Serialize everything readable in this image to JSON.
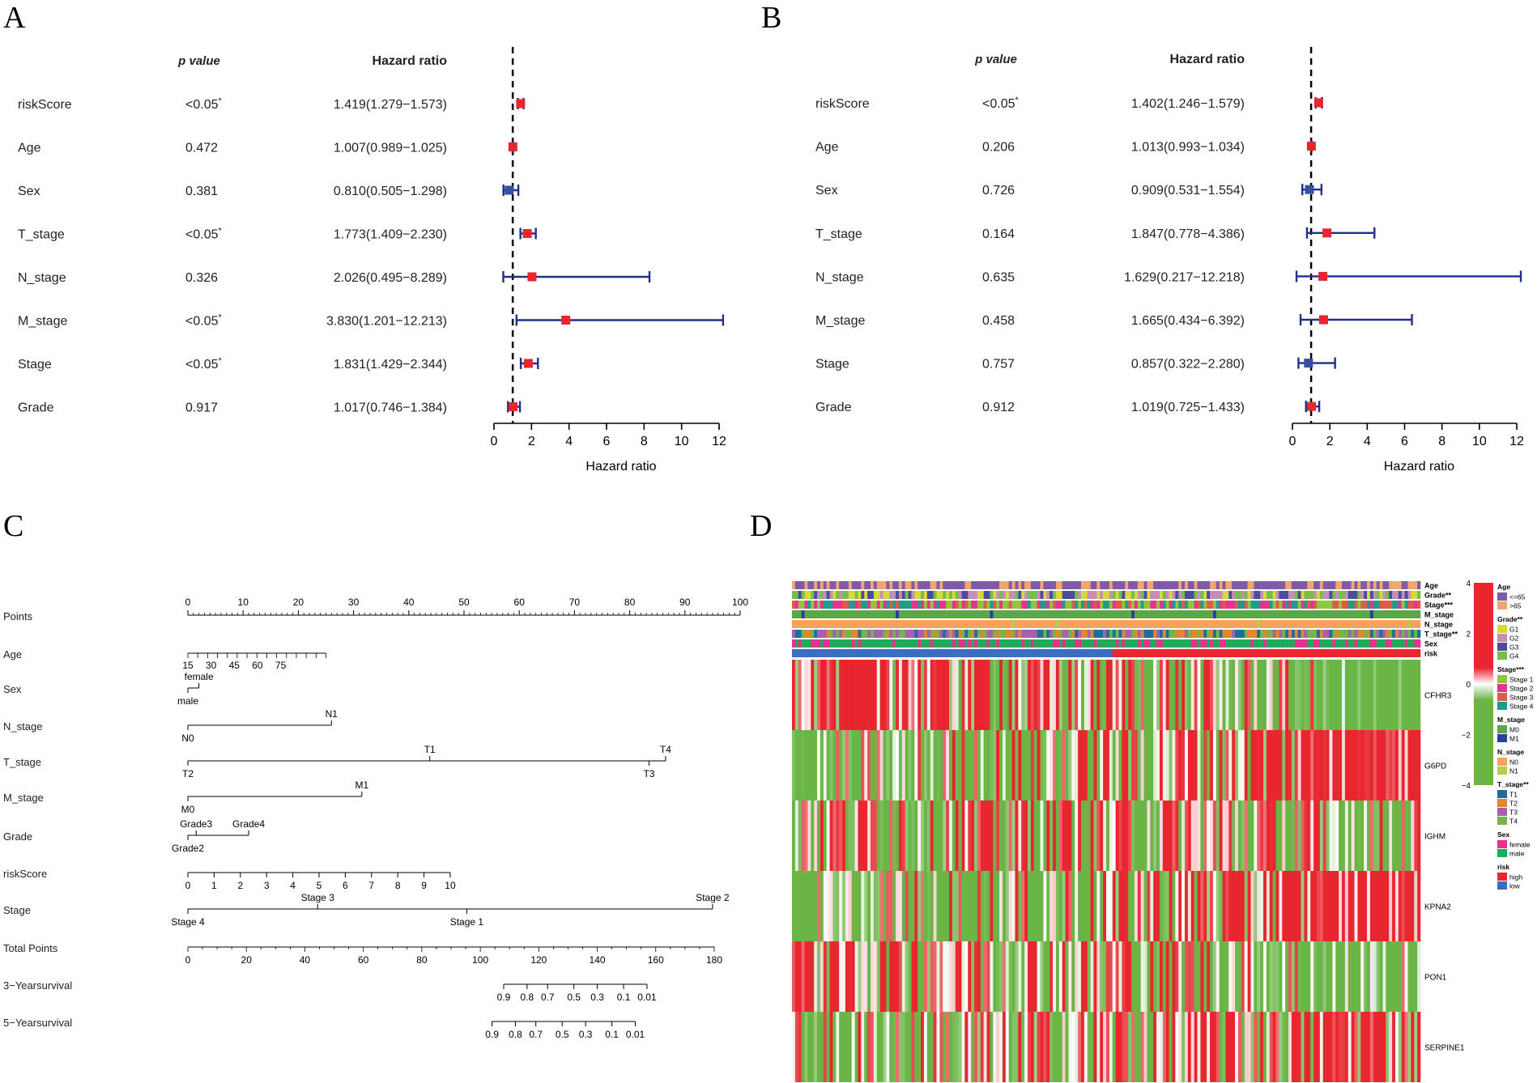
{
  "panels": {
    "A": "A",
    "B": "B",
    "C": "C",
    "D": "D"
  },
  "chart_data": [
    {
      "type": "forest",
      "panel": "A",
      "col_pvalue_header": "p value",
      "col_hr_header": "Hazard ratio",
      "xlabel": "Hazard ratio",
      "xticks": [
        "0",
        "2",
        "4",
        "6",
        "8",
        "10",
        "12"
      ],
      "xlim": [
        0,
        12
      ],
      "ref_line": 1,
      "colors": {
        "risk": "#e8262f",
        "protective": "#3a4ea0",
        "ci": "#1f2f8c"
      },
      "rows": [
        {
          "name": "riskScore",
          "p": "<0.05",
          "star": "*",
          "hr_text": "1.419(1.279−1.573)",
          "hr": 1.419,
          "lo": 1.279,
          "hi": 1.573
        },
        {
          "name": "Age",
          "p": "0.472",
          "star": "",
          "hr_text": "1.007(0.989−1.025)",
          "hr": 1.007,
          "lo": 0.989,
          "hi": 1.025
        },
        {
          "name": "Sex",
          "p": "0.381",
          "star": "",
          "hr_text": "0.810(0.505−1.298)",
          "hr": 0.81,
          "lo": 0.505,
          "hi": 1.298
        },
        {
          "name": "T_stage",
          "p": "<0.05",
          "star": "*",
          "hr_text": "1.773(1.409−2.230)",
          "hr": 1.773,
          "lo": 1.409,
          "hi": 2.23
        },
        {
          "name": "N_stage",
          "p": "0.326",
          "star": "",
          "hr_text": "2.026(0.495−8.289)",
          "hr": 2.026,
          "lo": 0.495,
          "hi": 8.289
        },
        {
          "name": "M_stage",
          "p": "<0.05",
          "star": "*",
          "hr_text": "3.830(1.201−12.213)",
          "hr": 3.83,
          "lo": 1.201,
          "hi": 12.213
        },
        {
          "name": "Stage",
          "p": "<0.05",
          "star": "*",
          "hr_text": "1.831(1.429−2.344)",
          "hr": 1.831,
          "lo": 1.429,
          "hi": 2.344
        },
        {
          "name": "Grade",
          "p": "0.917",
          "star": "",
          "hr_text": "1.017(0.746−1.384)",
          "hr": 1.017,
          "lo": 0.746,
          "hi": 1.384
        }
      ]
    },
    {
      "type": "forest",
      "panel": "B",
      "col_pvalue_header": "p value",
      "col_hr_header": "Hazard ratio",
      "xlabel": "Hazard ratio",
      "xticks": [
        "0",
        "2",
        "4",
        "6",
        "8",
        "10",
        "12"
      ],
      "xlim": [
        0,
        12
      ],
      "ref_line": 1,
      "colors": {
        "risk": "#e8262f",
        "protective": "#3a4ea0",
        "ci": "#1f2f8c"
      },
      "rows": [
        {
          "name": "riskScore",
          "p": "<0.05",
          "star": "*",
          "hr_text": "1.402(1.246−1.579)",
          "hr": 1.402,
          "lo": 1.246,
          "hi": 1.579
        },
        {
          "name": "Age",
          "p": "0.206",
          "star": "",
          "hr_text": "1.013(0.993−1.034)",
          "hr": 1.013,
          "lo": 0.993,
          "hi": 1.034
        },
        {
          "name": "Sex",
          "p": "0.726",
          "star": "",
          "hr_text": "0.909(0.531−1.554)",
          "hr": 0.909,
          "lo": 0.531,
          "hi": 1.554
        },
        {
          "name": "T_stage",
          "p": "0.164",
          "star": "",
          "hr_text": "1.847(0.778−4.386)",
          "hr": 1.847,
          "lo": 0.778,
          "hi": 4.386
        },
        {
          "name": "N_stage",
          "p": "0.635",
          "star": "",
          "hr_text": "1.629(0.217−12.218)",
          "hr": 1.629,
          "lo": 0.217,
          "hi": 12.218
        },
        {
          "name": "M_stage",
          "p": "0.458",
          "star": "",
          "hr_text": "1.665(0.434−6.392)",
          "hr": 1.665,
          "lo": 0.434,
          "hi": 6.392
        },
        {
          "name": "Stage",
          "p": "0.757",
          "star": "",
          "hr_text": "0.857(0.322−2.280)",
          "hr": 0.857,
          "lo": 0.322,
          "hi": 2.28
        },
        {
          "name": "Grade",
          "p": "0.912",
          "star": "",
          "hr_text": "1.019(0.725−1.433)",
          "hr": 1.019,
          "lo": 0.725,
          "hi": 1.433
        }
      ]
    },
    {
      "type": "nomogram",
      "panel": "C",
      "rows": [
        {
          "name": "Points",
          "kind": "points",
          "range": [
            0,
            100
          ],
          "ticks": [
            "0",
            "10",
            "20",
            "30",
            "40",
            "50",
            "60",
            "70",
            "80",
            "90",
            "100"
          ],
          "tick_values": [
            0,
            10,
            20,
            30,
            40,
            50,
            60,
            70,
            80,
            90,
            100
          ]
        },
        {
          "name": "Age",
          "kind": "age",
          "range": [
            0,
            25
          ],
          "labels": [
            "15",
            "30",
            "45",
            "60",
            "75"
          ],
          "label_points": [
            0,
            4.2,
            8.4,
            12.6,
            16.8
          ],
          "minor_count": 14
        },
        {
          "name": "Sex",
          "kind": "cat",
          "range": [
            0,
            2
          ],
          "upper": [
            {
              "text": "female",
              "pt": 2
            }
          ],
          "lower": [
            {
              "text": "male",
              "pt": 0
            }
          ]
        },
        {
          "name": "N_stage",
          "kind": "cat",
          "range": [
            0,
            26
          ],
          "upper": [
            {
              "text": "N1",
              "pt": 26
            }
          ],
          "lower": [
            {
              "text": "N0",
              "pt": 0
            }
          ]
        },
        {
          "name": "T_stage",
          "kind": "cat",
          "range": [
            0,
            86.5
          ],
          "upper": [
            {
              "text": "T1",
              "pt": 43.8
            },
            {
              "text": "T4",
              "pt": 86.5
            }
          ],
          "lower": [
            {
              "text": "T2",
              "pt": 0
            },
            {
              "text": "T3",
              "pt": 83.5
            }
          ]
        },
        {
          "name": "M_stage",
          "kind": "cat",
          "range": [
            0,
            31.5
          ],
          "upper": [
            {
              "text": "M1",
              "pt": 31.5
            }
          ],
          "lower": [
            {
              "text": "M0",
              "pt": 0
            }
          ]
        },
        {
          "name": "Grade",
          "kind": "cat",
          "range": [
            0,
            11
          ],
          "upper": [
            {
              "text": "Grade3",
              "pt": 1.5
            },
            {
              "text": "Grade4",
              "pt": 11
            }
          ],
          "lower": [
            {
              "text": "Grade2",
              "pt": 0
            }
          ]
        },
        {
          "name": "riskScore",
          "kind": "scale",
          "range": [
            0,
            47.5
          ],
          "labels": [
            "0",
            "1",
            "2",
            "3",
            "4",
            "5",
            "6",
            "7",
            "8",
            "9",
            "10"
          ],
          "label_points": [
            0,
            4.75,
            9.5,
            14.25,
            19,
            23.75,
            28.5,
            33.25,
            38,
            42.75,
            47.5
          ]
        },
        {
          "name": "Stage",
          "kind": "cat",
          "range": [
            0,
            95
          ],
          "upper": [
            {
              "text": "Stage 3",
              "pt": 23.5
            },
            {
              "text": "Stage 2",
              "pt": 95
            }
          ],
          "lower": [
            {
              "text": "Stage 4",
              "pt": 0
            },
            {
              "text": "Stage 1",
              "pt": 50.5
            }
          ]
        },
        {
          "name": "Total Points",
          "kind": "total",
          "range": [
            0,
            180
          ],
          "labels": [
            "0",
            "20",
            "40",
            "60",
            "80",
            "100",
            "120",
            "140",
            "160",
            "180"
          ],
          "label_values": [
            0,
            20,
            40,
            60,
            80,
            100,
            120,
            140,
            160,
            180
          ]
        },
        {
          "name": "3−Yearsurvival",
          "kind": "surv",
          "labels": [
            "0.9",
            "0.8",
            "0.7",
            "0.5",
            "0.3",
            "0.1",
            "0.01"
          ],
          "label_values": [
            108,
            116,
            123,
            132,
            140,
            149,
            157
          ]
        },
        {
          "name": "5−Yearsurvival",
          "kind": "surv",
          "labels": [
            "0.9",
            "0.8",
            "0.7",
            "0.5",
            "0.3",
            "0.1",
            "0.01"
          ],
          "label_values": [
            104,
            112,
            119,
            128,
            136,
            145,
            153
          ]
        }
      ]
    },
    {
      "type": "heatmap",
      "panel": "D",
      "annotation_rows": [
        "Age",
        "Grade**",
        "Stage***",
        "M_stage",
        "N_stage",
        "T_stage**",
        "Sex",
        "risk"
      ],
      "genes": [
        "CFHR3",
        "G6PD",
        "IGHM",
        "KPNA2",
        "PON1",
        "SERPINE1"
      ],
      "color_scale": {
        "ticks": [
          "4",
          "2",
          "0",
          "−2",
          "−4"
        ],
        "values": [
          4,
          2,
          0,
          -2,
          -4
        ],
        "high": "#e8262f",
        "mid": "#ffffff",
        "low": "#6ab546"
      },
      "n_samples": 200,
      "high_risk_fraction": 0.49,
      "legend": [
        {
          "title": "Age",
          "items": [
            {
              "label": "<=65",
              "color": "#7e5aa8"
            },
            {
              "label": ">65",
              "color": "#f2a56f"
            }
          ]
        },
        {
          "title": "Grade**",
          "items": [
            {
              "label": "G1",
              "color": "#d7d93a"
            },
            {
              "label": "G2",
              "color": "#c48fb7"
            },
            {
              "label": "G3",
              "color": "#4b4c9c"
            },
            {
              "label": "G4",
              "color": "#78bd4b"
            }
          ]
        },
        {
          "title": "Stage***",
          "items": [
            {
              "label": "Stage 1",
              "color": "#8fc63f"
            },
            {
              "label": "Stage 2",
              "color": "#e8308e"
            },
            {
              "label": "Stage 3",
              "color": "#e05a4a"
            },
            {
              "label": "Stage 4",
              "color": "#1e9b8a"
            }
          ]
        },
        {
          "title": "M_stage",
          "items": [
            {
              "label": "M0",
              "color": "#5aa84a"
            },
            {
              "label": "M1",
              "color": "#2c3e9c"
            }
          ]
        },
        {
          "title": "N_stage",
          "items": [
            {
              "label": "N0",
              "color": "#f5a25d"
            },
            {
              "label": "N1",
              "color": "#b5cf4a"
            }
          ]
        },
        {
          "title": "T_stage**",
          "items": [
            {
              "label": "T1",
              "color": "#1f6e9a"
            },
            {
              "label": "T2",
              "color": "#e2872d"
            },
            {
              "label": "T3",
              "color": "#a85fae"
            },
            {
              "label": "T4",
              "color": "#72b54a"
            }
          ]
        },
        {
          "title": "Sex",
          "items": [
            {
              "label": "female",
              "color": "#e8308e"
            },
            {
              "label": "male",
              "color": "#1fab5a"
            }
          ]
        },
        {
          "title": "risk",
          "items": [
            {
              "label": "high",
              "color": "#e8262f"
            },
            {
              "label": "low",
              "color": "#3a6fbf"
            }
          ]
        }
      ]
    }
  ]
}
